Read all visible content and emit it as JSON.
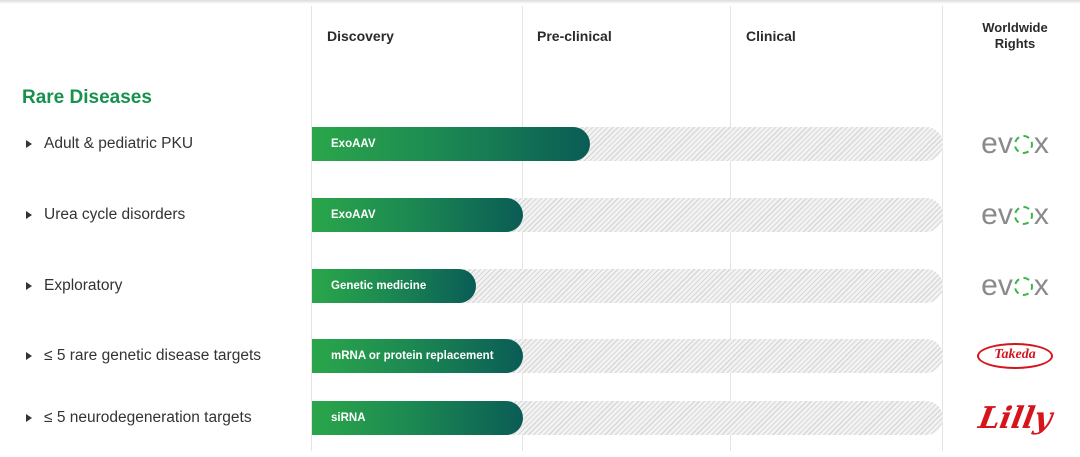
{
  "columns": {
    "discovery": "Discovery",
    "preclinical": "Pre-clinical",
    "clinical": "Clinical",
    "rights_line1": "Worldwide",
    "rights_line2": "Rights"
  },
  "section_title": "Rare Diseases",
  "chart_data": {
    "type": "bar",
    "orientation": "horizontal",
    "stages": [
      "Discovery",
      "Pre-clinical",
      "Clinical"
    ],
    "rows": [
      {
        "program": "Adult & pediatric PKU",
        "modality": "ExoAAV",
        "progress": 0.44,
        "rights": "evox"
      },
      {
        "program": "Urea cycle disorders",
        "modality": "ExoAAV",
        "progress": 0.335,
        "rights": "evox"
      },
      {
        "program": "Exploratory",
        "modality": "Genetic medicine",
        "progress": 0.26,
        "rights": "evox"
      },
      {
        "program": "≤ 5 rare genetic disease targets",
        "modality": "mRNA or protein replacement",
        "progress": 0.335,
        "rights": "Takeda"
      },
      {
        "program": "≤ 5 neurodegeneration targets",
        "modality": "siRNA",
        "progress": 0.335,
        "rights": "Lilly"
      }
    ]
  },
  "logos": {
    "evox": "evox",
    "takeda": "Takeda",
    "lilly": "Lilly"
  },
  "colors": {
    "section_title": "#17924e",
    "bar_start": "#2aa64a",
    "bar_end": "#0a5c55",
    "evox_text": "#8a8a8a",
    "evox_accent": "#3cb44a",
    "partner_red": "#d5141c"
  }
}
